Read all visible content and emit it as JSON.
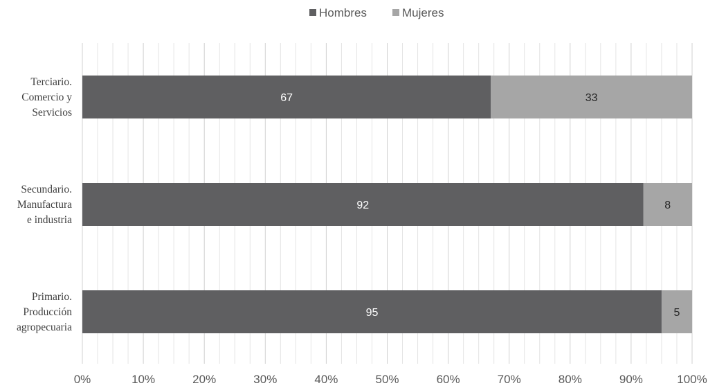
{
  "chart_data": {
    "type": "bar",
    "orientation": "horizontal",
    "stacked": "percent",
    "categories": [
      [
        "Terciario.",
        "Comercio y",
        "Servicios"
      ],
      [
        "Secundario.",
        "Manufactura",
        "e industria"
      ],
      [
        "Primario.",
        "Producción",
        "agropecuaria"
      ]
    ],
    "series": [
      {
        "name": "Hombres",
        "values": [
          67,
          92,
          95
        ],
        "color": "#5f5f61"
      },
      {
        "name": "Mujeres",
        "values": [
          33,
          8,
          5
        ],
        "color": "#a6a6a6"
      }
    ],
    "xlim": [
      0,
      100
    ],
    "x_ticks": [
      "0%",
      "10%",
      "20%",
      "30%",
      "40%",
      "50%",
      "60%",
      "70%",
      "80%",
      "90%",
      "100%"
    ],
    "grid": "vertical",
    "legend_position": "top-center",
    "title": "",
    "xlabel": "",
    "ylabel": ""
  }
}
